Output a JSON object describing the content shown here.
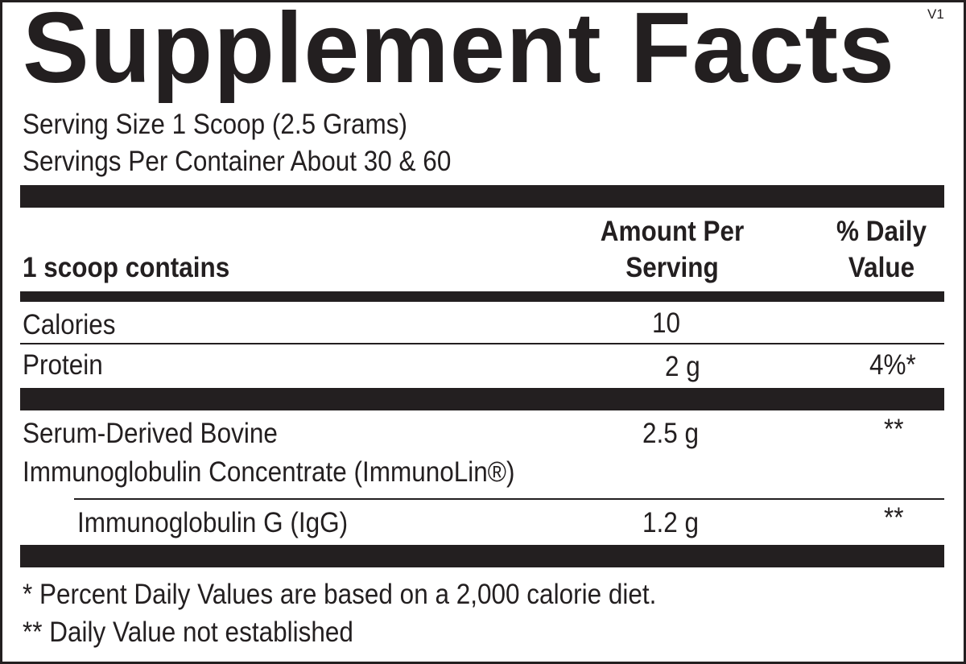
{
  "title": "Supplement Facts",
  "version": "V1",
  "serving_size": "Serving Size 1 Scoop (2.5 Grams)",
  "servings_per_container": "Servings Per Container About 30 & 60",
  "header": {
    "contains": "1 scoop contains",
    "amount_line1": "Amount Per",
    "amount_line2": "Serving",
    "dv_line1": "% Daily",
    "dv_line2": "Value"
  },
  "rows": [
    {
      "name": "Calories",
      "amount": "10",
      "dv": ""
    },
    {
      "name": "Protein",
      "amount": "2 g",
      "dv": "4%*"
    },
    {
      "name_line1": "Serum-Derived Bovine",
      "name_line2": "Immunoglobulin Concentrate (ImmunoLin®)",
      "amount": "2.5 g",
      "dv": "**"
    },
    {
      "name": "Immunoglobulin G (IgG)",
      "amount": "1.2 g",
      "dv": "**"
    }
  ],
  "footnotes": [
    "* Percent Daily Values are based on a 2,000 calorie diet.",
    "** Daily Value not established"
  ]
}
